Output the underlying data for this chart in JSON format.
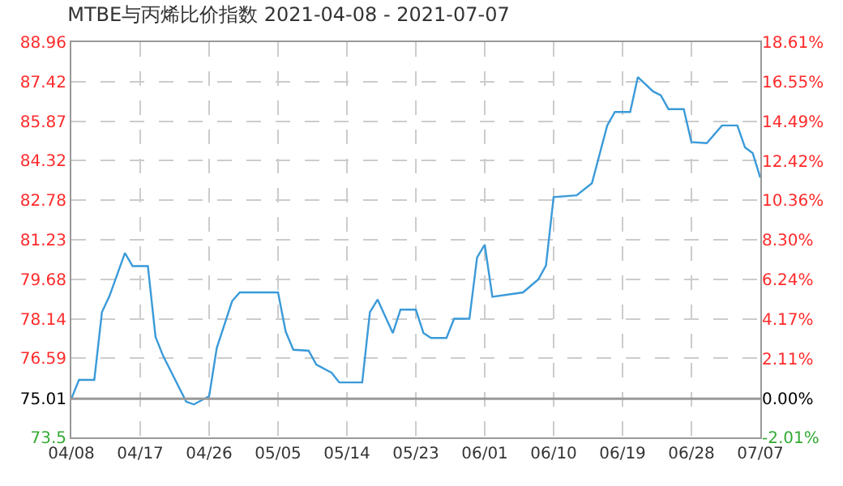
{
  "chart_data": {
    "type": "line",
    "title": "MTBE与丙烯比价指数 2021-04-08 - 2021-07-07",
    "x": [
      "2021-04-08",
      "2021-04-09",
      "2021-04-11",
      "2021-04-12",
      "2021-04-13",
      "2021-04-15",
      "2021-04-16",
      "2021-04-18",
      "2021-04-19",
      "2021-04-20",
      "2021-04-23",
      "2021-04-24",
      "2021-04-26",
      "2021-04-27",
      "2021-04-29",
      "2021-04-30",
      "2021-05-05",
      "2021-05-06",
      "2021-05-07",
      "2021-05-09",
      "2021-05-10",
      "2021-05-12",
      "2021-05-13",
      "2021-05-16",
      "2021-05-17",
      "2021-05-18",
      "2021-05-20",
      "2021-05-21",
      "2021-05-23",
      "2021-05-24",
      "2021-05-25",
      "2021-05-27",
      "2021-05-28",
      "2021-05-30",
      "2021-05-31",
      "2021-06-01",
      "2021-06-02",
      "2021-06-06",
      "2021-06-08",
      "2021-06-09",
      "2021-06-10",
      "2021-06-13",
      "2021-06-15",
      "2021-06-17",
      "2021-06-18",
      "2021-06-20",
      "2021-06-21",
      "2021-06-23",
      "2021-06-24",
      "2021-06-25",
      "2021-06-27",
      "2021-06-28",
      "2021-06-30",
      "2021-07-02",
      "2021-07-04",
      "2021-07-05",
      "2021-07-06",
      "2021-07-07"
    ],
    "series": [
      {
        "color": "#3a9ad9",
        "values": [
          75.01,
          75.75,
          75.75,
          78.4,
          79.04,
          80.71,
          80.2,
          80.2,
          77.43,
          76.68,
          74.9,
          74.79,
          75.11,
          77.0,
          78.83,
          79.17,
          79.17,
          77.64,
          76.93,
          76.89,
          76.35,
          76.03,
          75.65,
          75.65,
          78.4,
          78.89,
          77.58,
          78.5,
          78.5,
          77.58,
          77.39,
          77.39,
          78.14,
          78.14,
          80.54,
          81.04,
          79.0,
          79.17,
          79.68,
          80.22,
          82.9,
          82.97,
          83.44,
          85.7,
          86.23,
          86.23,
          87.59,
          87.03,
          86.88,
          86.34,
          86.34,
          85.05,
          85.01,
          85.7,
          85.7,
          84.84,
          84.62,
          83.66
        ]
      }
    ],
    "xlim": [
      "2021-04-08",
      "2021-07-07"
    ],
    "xticks": [
      {
        "value": "2021-04-08",
        "label": "04/08"
      },
      {
        "value": "2021-04-17",
        "label": "04/17"
      },
      {
        "value": "2021-04-26",
        "label": "04/26"
      },
      {
        "value": "2021-05-05",
        "label": "05/05"
      },
      {
        "value": "2021-05-14",
        "label": "05/14"
      },
      {
        "value": "2021-05-23",
        "label": "05/23"
      },
      {
        "value": "2021-06-01",
        "label": "06/01"
      },
      {
        "value": "2021-06-10",
        "label": "06/10"
      },
      {
        "value": "2021-06-19",
        "label": "06/19"
      },
      {
        "value": "2021-06-28",
        "label": "06/28"
      },
      {
        "value": "2021-07-07",
        "label": "07/07"
      }
    ],
    "ylim": [
      73.5,
      88.96
    ],
    "yticks": [
      73.5,
      {
        "value": 75.01,
        "label": "75.01"
      },
      76.59,
      78.14,
      79.68,
      81.23,
      82.78,
      84.32,
      85.87,
      87.42,
      88.96
    ],
    "y2lim": [
      -2.01,
      18.61
    ],
    "y2ticks": [
      {
        "value": -2.01,
        "label": "-2.01%"
      },
      {
        "value": 0,
        "label": "0.00%"
      },
      {
        "value": 2.11,
        "label": "2.11%"
      },
      {
        "value": 4.17,
        "label": "4.17%"
      },
      {
        "value": 6.24,
        "label": "6.24%"
      },
      {
        "value": 8.3,
        "label": "8.30%"
      },
      {
        "value": 10.36,
        "label": "10.36%"
      },
      {
        "value": 12.42,
        "label": "12.42%"
      },
      {
        "value": 14.49,
        "label": "14.49%"
      },
      {
        "value": 16.55,
        "label": "16.55%"
      },
      {
        "value": 18.61,
        "label": "18.61%"
      }
    ],
    "ref_lines": [
      {
        "axis": "y",
        "value": 75.01,
        "color": "#999999"
      }
    ],
    "grid": true,
    "marker": "none",
    "line_style": "solid"
  }
}
